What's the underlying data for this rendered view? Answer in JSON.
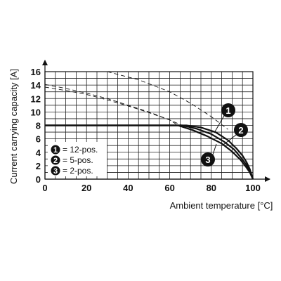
{
  "chart_data": {
    "type": "line",
    "xlabel": "Ambient temperature [°C]",
    "ylabel": "Current carrying capacity [A]",
    "xlim": [
      0,
      100
    ],
    "ylim": [
      0,
      16
    ],
    "x_ticks": [
      "0",
      "20",
      "40",
      "60",
      "80",
      "100"
    ],
    "y_ticks": [
      "0",
      "2",
      "4",
      "6",
      "8",
      "10",
      "12",
      "14",
      "16"
    ],
    "grid": true,
    "limit_current": 8,
    "legend_position": "lower-left",
    "legend": [
      {
        "marker": "1",
        "label": "= 12-pos."
      },
      {
        "marker": "2",
        "label": "= 5-pos."
      },
      {
        "marker": "3",
        "label": "= 2-pos."
      }
    ],
    "series": [
      {
        "marker": "1",
        "x": [
          0,
          60,
          68,
          75,
          82,
          88,
          92,
          95,
          97,
          98.5,
          100
        ],
        "y": [
          8,
          8,
          8,
          7.7,
          7.0,
          5.8,
          4.6,
          3.5,
          2.5,
          1.5,
          0
        ]
      },
      {
        "marker": "2",
        "x": [
          0,
          60,
          66,
          73,
          80,
          86,
          91,
          94,
          96.5,
          98.5,
          100
        ],
        "y": [
          8,
          8,
          8,
          7.5,
          6.7,
          5.6,
          4.4,
          3.3,
          2.3,
          1.2,
          0
        ]
      },
      {
        "marker": "3",
        "x": [
          0,
          60,
          64,
          71,
          78,
          85,
          90,
          94,
          96.5,
          98.5,
          100
        ],
        "y": [
          8,
          8,
          8,
          7.3,
          6.4,
          5.3,
          4.1,
          2.9,
          1.9,
          1.0,
          0
        ]
      }
    ],
    "extrapolations": [
      {
        "marker": "1",
        "x": [
          30,
          45,
          60,
          70,
          80,
          88
        ],
        "y": [
          16,
          14.8,
          13.0,
          11.3,
          9.3,
          7.4
        ]
      },
      {
        "marker": "3",
        "x": [
          0,
          10,
          20,
          30,
          40,
          50,
          60,
          64
        ],
        "y": [
          14.1,
          13.5,
          12.8,
          12.0,
          11.0,
          10.0,
          8.8,
          8.0
        ]
      },
      {
        "marker": "2",
        "x": [
          0,
          10,
          20,
          30,
          40,
          50,
          60,
          66
        ],
        "y": [
          13.7,
          13.2,
          12.6,
          11.8,
          10.9,
          9.9,
          8.8,
          8.0
        ]
      }
    ],
    "callouts": [
      "1",
      "2",
      "3"
    ]
  }
}
